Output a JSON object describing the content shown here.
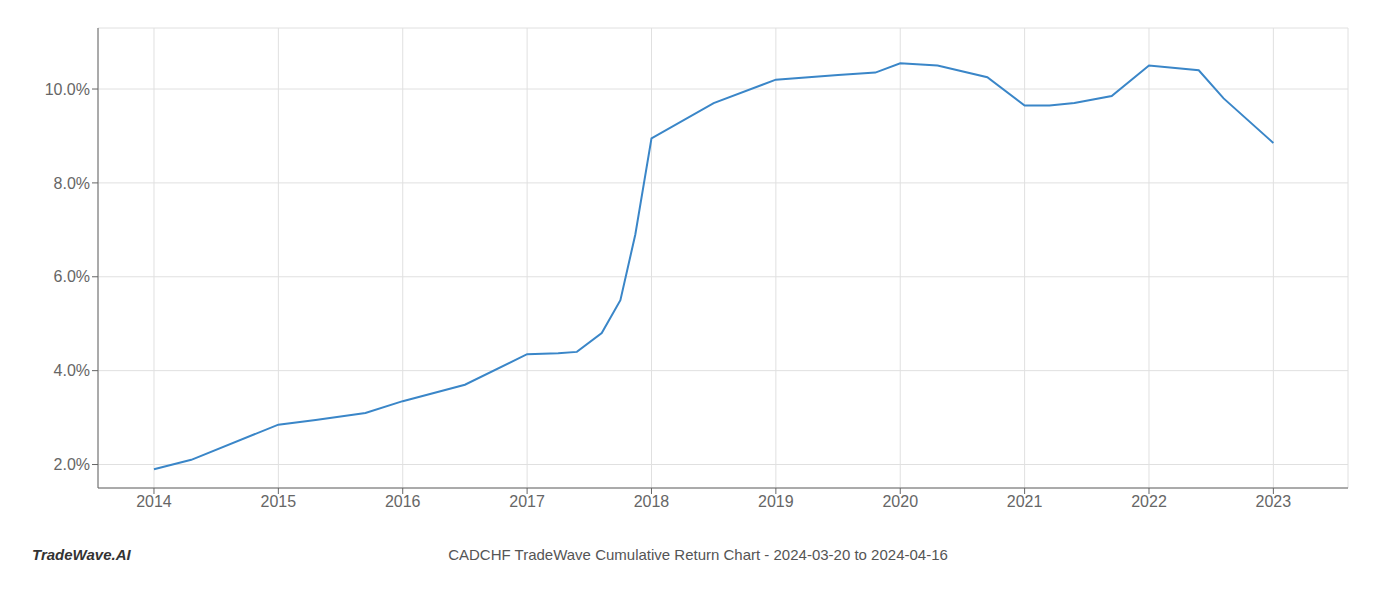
{
  "chart_data": {
    "type": "line",
    "title": "CADCHF TradeWave Cumulative Return Chart - 2024-03-20 to 2024-04-16",
    "annotations": [
      "TradeWave.AI"
    ],
    "x": [
      2014,
      2014.3,
      2015,
      2015.3,
      2015.7,
      2016,
      2016.5,
      2017,
      2017.25,
      2017.4,
      2017.6,
      2017.75,
      2017.87,
      2018,
      2018.5,
      2019,
      2019.5,
      2019.8,
      2020,
      2020.3,
      2020.7,
      2021,
      2021.2,
      2021.4,
      2021.7,
      2022,
      2022.4,
      2022.6,
      2023
    ],
    "values": [
      1.9,
      2.1,
      2.85,
      2.95,
      3.1,
      3.35,
      3.7,
      4.35,
      4.37,
      4.4,
      4.8,
      5.5,
      6.9,
      8.95,
      9.7,
      10.2,
      10.3,
      10.35,
      10.55,
      10.5,
      10.25,
      9.65,
      9.65,
      9.7,
      9.85,
      10.5,
      10.4,
      9.8,
      8.85
    ],
    "color": "#3a86c8",
    "xlim": [
      2013.55,
      2023.6
    ],
    "ylim": [
      1.5,
      11.3
    ],
    "xticks": [
      2014,
      2015,
      2016,
      2017,
      2018,
      2019,
      2020,
      2021,
      2022,
      2023
    ],
    "yticks": [
      {
        "value": 2.0,
        "label": "2.0%"
      },
      {
        "value": 4.0,
        "label": "4.0%"
      },
      {
        "value": 6.0,
        "label": "6.0%"
      },
      {
        "value": 8.0,
        "label": "8.0%"
      },
      {
        "value": 10.0,
        "label": "10.0%"
      }
    ],
    "grid": true
  }
}
